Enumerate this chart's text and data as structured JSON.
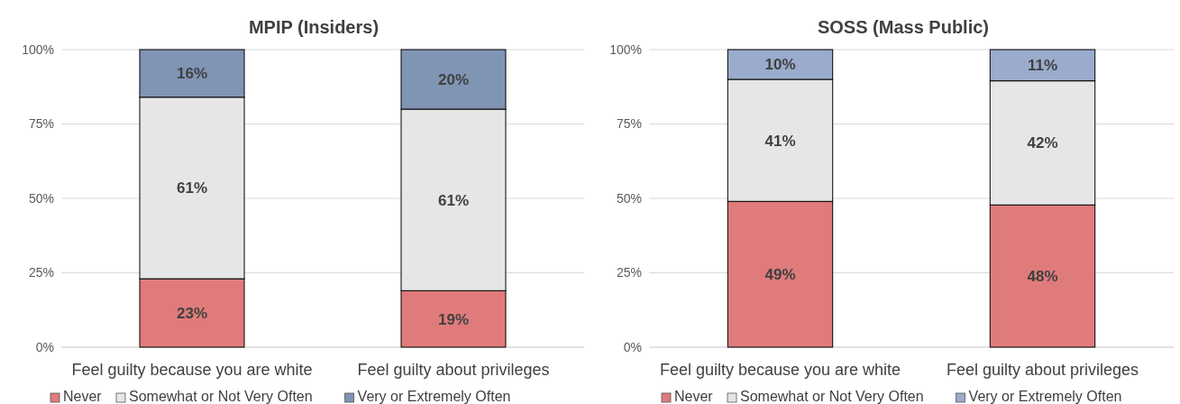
{
  "chart_data": [
    {
      "type": "bar",
      "title": "MPIP (Insiders)",
      "categories": [
        "Feel guilty because you are white",
        "Feel guilty about privileges"
      ],
      "stacked": true,
      "ylim": [
        0,
        100
      ],
      "yticks": [
        {
          "value": 0,
          "label": "0%"
        },
        {
          "value": 25,
          "label": "25%"
        },
        {
          "value": 50,
          "label": "50%"
        },
        {
          "value": 75,
          "label": "75%"
        },
        {
          "value": 100,
          "label": "100%"
        }
      ],
      "grid": "y",
      "legend": "bottom",
      "series": [
        {
          "name": "Never",
          "color": "#e07b7b",
          "values": [
            23,
            19
          ],
          "value_labels": [
            "23%",
            "19%"
          ]
        },
        {
          "name": "Somewhat or Not Very Often",
          "color": "#e6e6e6",
          "values": [
            61,
            61
          ],
          "value_labels": [
            "61%",
            "61%"
          ]
        },
        {
          "name": "Very or Extremely Often",
          "color": "#8094b4",
          "values": [
            16,
            20
          ],
          "value_labels": [
            "16%",
            "20%"
          ]
        }
      ]
    },
    {
      "type": "bar",
      "title": "SOSS (Mass Public)",
      "categories": [
        "Feel guilty because you are white",
        "Feel guilty about privileges"
      ],
      "stacked": true,
      "ylim": [
        0,
        100
      ],
      "yticks": [
        {
          "value": 0,
          "label": "0%"
        },
        {
          "value": 25,
          "label": "25%"
        },
        {
          "value": 50,
          "label": "50%"
        },
        {
          "value": 75,
          "label": "75%"
        },
        {
          "value": 100,
          "label": "100%"
        }
      ],
      "grid": "y",
      "legend": "bottom",
      "series": [
        {
          "name": "Never",
          "color": "#e07b7b",
          "values": [
            49,
            47.8
          ],
          "value_labels": [
            "49%",
            "48%"
          ]
        },
        {
          "name": "Somewhat or Not Very Often",
          "color": "#e6e6e6",
          "values": [
            41,
            41.7
          ],
          "value_labels": [
            "41%",
            "42%"
          ]
        },
        {
          "name": "Very or Extremely Often",
          "color": "#9aabcc",
          "values": [
            10,
            10.5
          ],
          "value_labels": [
            "10%",
            "11%"
          ]
        }
      ]
    }
  ]
}
